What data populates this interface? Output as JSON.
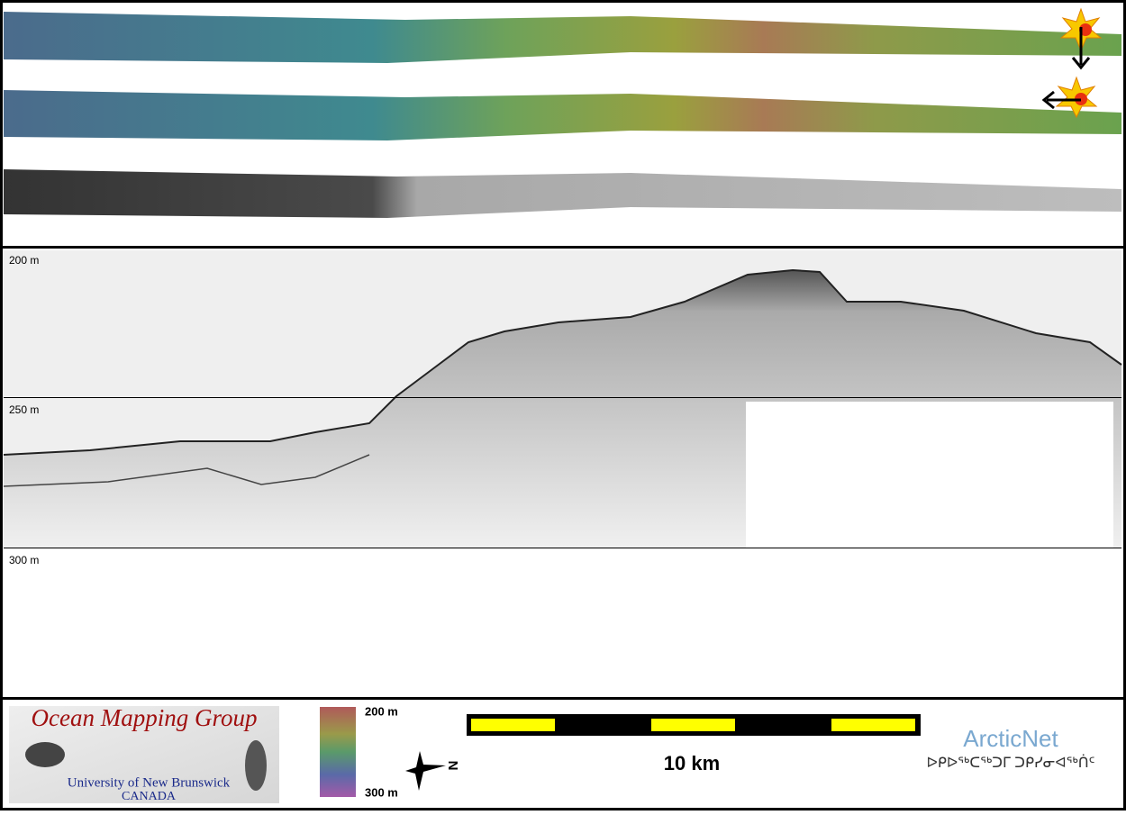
{
  "profile": {
    "depth_labels": [
      "200 m",
      "250 m",
      "300 m"
    ]
  },
  "logo": {
    "title": "Ocean Mapping Group",
    "university": "University of New Brunswick",
    "country": "CANADA"
  },
  "colorbar": {
    "top_label": "200 m",
    "bottom_label": "300 m"
  },
  "compass": {
    "north": "N"
  },
  "scale_bar": {
    "label": "10 km"
  },
  "partner": {
    "name": "ArcticNet",
    "subtitle": "ᐅᑭᐅᖅᑕᖅᑐᒥ ᑐᑭᓯᓂᐊᖅᑏᑦ"
  }
}
